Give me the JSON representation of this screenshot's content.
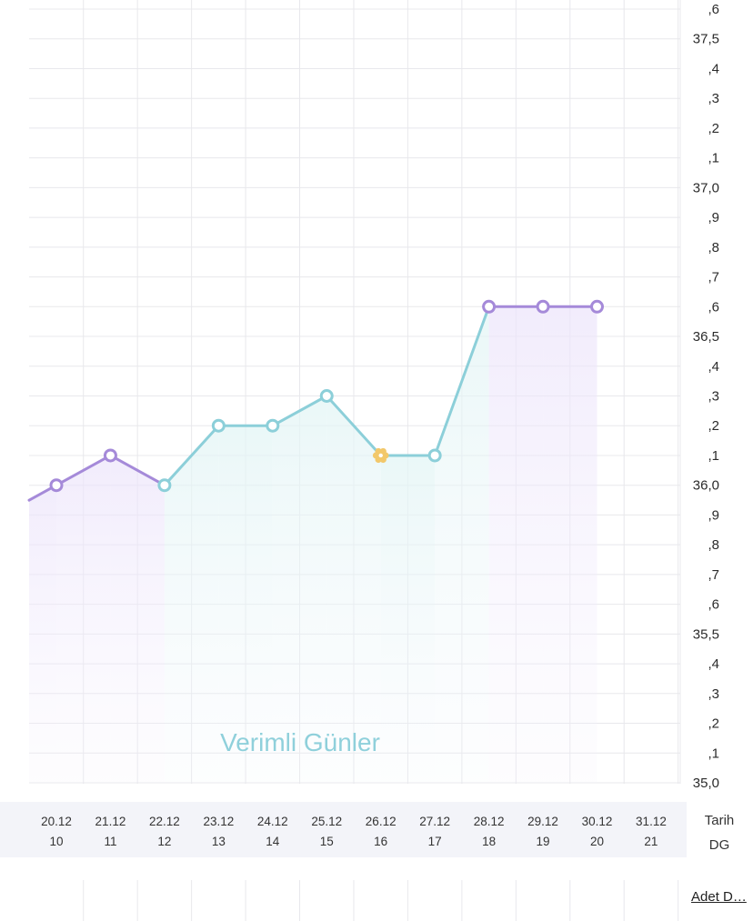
{
  "chart_data": {
    "type": "line",
    "x_labels": [
      "20.12",
      "21.12",
      "22.12",
      "23.12",
      "24.12",
      "25.12",
      "26.12",
      "27.12",
      "28.12",
      "29.12",
      "30.12",
      "31.12"
    ],
    "dg_labels": [
      "10",
      "11",
      "12",
      "13",
      "14",
      "15",
      "16",
      "17",
      "18",
      "19",
      "20",
      "21"
    ],
    "series": [
      {
        "values": [
          36.0,
          36.1,
          36.0,
          36.2,
          36.2,
          36.3,
          36.1,
          36.1,
          36.6,
          36.6,
          36.6,
          null
        ],
        "phases": [
          "purple",
          "purple",
          "teal",
          "teal",
          "teal",
          "teal",
          "ovulation",
          "teal",
          "purple",
          "purple",
          "purple",
          null
        ]
      }
    ],
    "ylim": [
      35.0,
      37.6
    ],
    "y_tick_labels": [
      {
        "v": 35.0,
        "t": "35,0"
      },
      {
        "v": 35.1,
        "t": ",1"
      },
      {
        "v": 35.2,
        "t": ",2"
      },
      {
        "v": 35.3,
        "t": ",3"
      },
      {
        "v": 35.4,
        "t": ",4"
      },
      {
        "v": 35.5,
        "t": "35,5"
      },
      {
        "v": 35.6,
        "t": ",6"
      },
      {
        "v": 35.7,
        "t": ",7"
      },
      {
        "v": 35.8,
        "t": ",8"
      },
      {
        "v": 35.9,
        "t": ",9"
      },
      {
        "v": 36.0,
        "t": "36,0"
      },
      {
        "v": 36.1,
        "t": ",1"
      },
      {
        "v": 36.2,
        "t": ",2"
      },
      {
        "v": 36.3,
        "t": ",3"
      },
      {
        "v": 36.4,
        "t": ",4"
      },
      {
        "v": 36.5,
        "t": "36,5"
      },
      {
        "v": 36.6,
        "t": ",6"
      },
      {
        "v": 36.7,
        "t": ",7"
      },
      {
        "v": 36.8,
        "t": ",8"
      },
      {
        "v": 36.9,
        "t": ",9"
      },
      {
        "v": 37.0,
        "t": "37,0"
      },
      {
        "v": 37.1,
        "t": ",1"
      },
      {
        "v": 37.2,
        "t": ",2"
      },
      {
        "v": 37.3,
        "t": ",3"
      },
      {
        "v": 37.4,
        "t": ",4"
      },
      {
        "v": 37.5,
        "t": "37,5"
      },
      {
        "v": 37.6,
        "t": ",6"
      }
    ],
    "row_labels": {
      "date": "Tarih",
      "dg": "DG"
    },
    "watermark": "Verimli Günler",
    "colors": {
      "purple": "#a58ad9",
      "teal": "#8ccfd9",
      "ovulation": "#f2c86b",
      "grid": "#e8e8ec",
      "row_bg": "#f3f4f9"
    },
    "grid": true
  },
  "footer": {
    "link_label": "Adet D…"
  }
}
